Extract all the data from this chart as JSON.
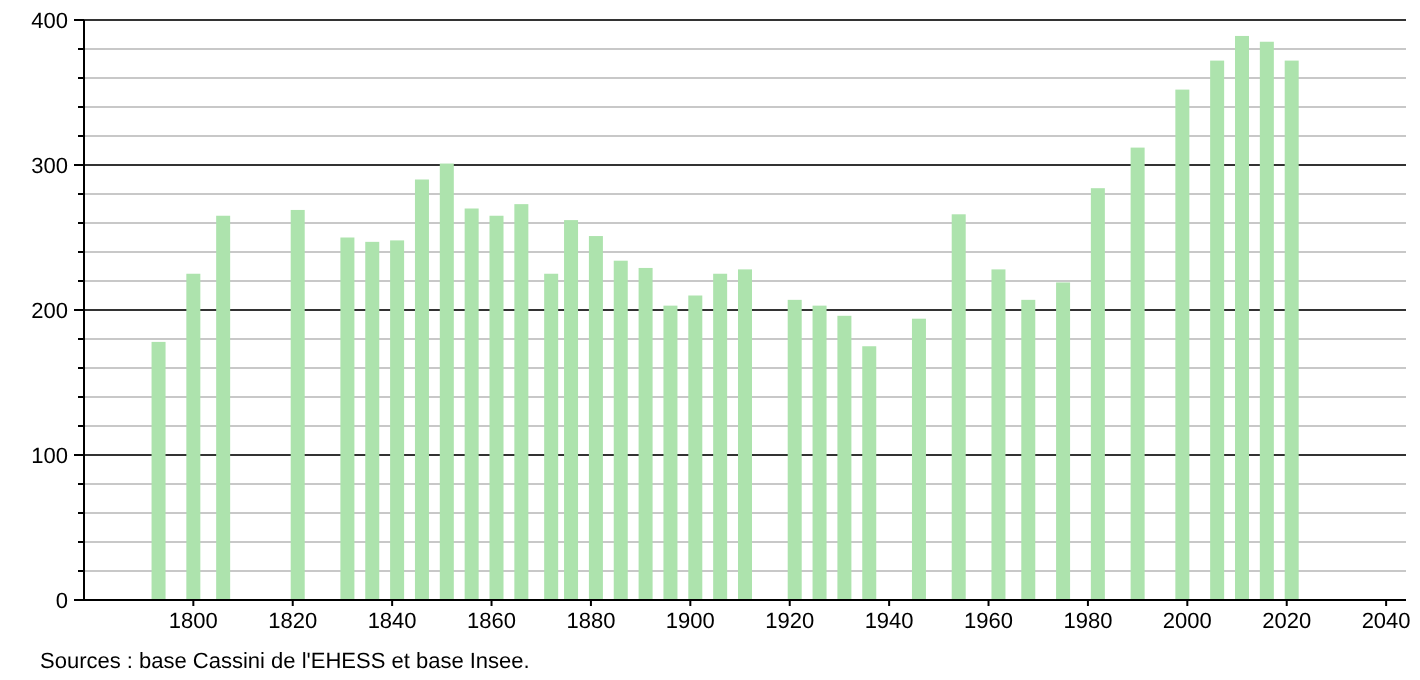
{
  "chart_data": {
    "type": "bar",
    "x": [
      1793,
      1800,
      1806,
      1821,
      1831,
      1836,
      1841,
      1846,
      1851,
      1856,
      1861,
      1866,
      1872,
      1876,
      1881,
      1886,
      1891,
      1896,
      1901,
      1906,
      1911,
      1921,
      1926,
      1931,
      1936,
      1946,
      1954,
      1962,
      1968,
      1975,
      1982,
      1990,
      1999,
      2006,
      2011,
      2016,
      2021
    ],
    "values": [
      178,
      225,
      265,
      269,
      250,
      247,
      248,
      290,
      301,
      270,
      265,
      273,
      225,
      262,
      251,
      234,
      229,
      203,
      210,
      225,
      228,
      207,
      203,
      196,
      175,
      194,
      266,
      228,
      207,
      219,
      284,
      312,
      352,
      372,
      389,
      385,
      372
    ],
    "color": "#ade3ad",
    "xlim": [
      1778,
      2044
    ],
    "xticks": [
      1800,
      1820,
      1840,
      1860,
      1880,
      1900,
      1920,
      1940,
      1960,
      1980,
      2000,
      2020,
      2040
    ],
    "ylim": [
      0,
      400
    ],
    "yticks": [
      0,
      {
        "value": 20,
        "label": null
      },
      {
        "value": 40,
        "label": null
      },
      {
        "value": 60,
        "label": null
      },
      {
        "value": 80,
        "label": null
      },
      100,
      {
        "value": 120,
        "label": null
      },
      {
        "value": 140,
        "label": null
      },
      {
        "value": 160,
        "label": null
      },
      {
        "value": 180,
        "label": null
      },
      200,
      {
        "value": 220,
        "label": null
      },
      {
        "value": 240,
        "label": null
      },
      {
        "value": 260,
        "label": null
      },
      {
        "value": 280,
        "label": null
      },
      300,
      {
        "value": 320,
        "label": null
      },
      {
        "value": 340,
        "label": null
      },
      {
        "value": 360,
        "label": null
      },
      {
        "value": 380,
        "label": null
      },
      400
    ],
    "grid": true,
    "annotations": [
      "Sources : base Cassini de l'EHESS et base Insee."
    ]
  }
}
